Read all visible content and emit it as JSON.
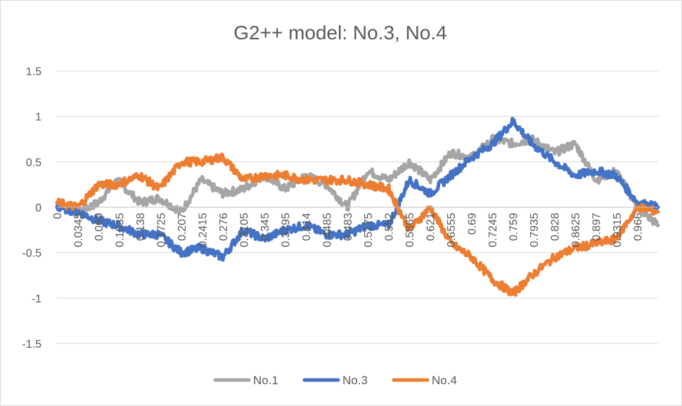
{
  "chart_data": {
    "type": "line",
    "title": "G2++ model: No.3, No.4",
    "xlabel": "",
    "ylabel": "",
    "ylim": [
      -1.5,
      1.5
    ],
    "xlim": [
      0,
      1
    ],
    "yticks": [
      1.5,
      1,
      0.5,
      0,
      -0.5,
      -1,
      -1.5
    ],
    "ytick_labels": [
      "1.5",
      "1",
      "0.5",
      "0",
      "-0.5",
      "-1",
      "-1.5"
    ],
    "xtick_labels": [
      "0",
      "0.0345",
      "0.069",
      "0.1035",
      "0.138",
      "0.1725",
      "0.207",
      "0.2415",
      "0.276",
      "0.3105",
      "0.345",
      "0.3795",
      "0.414",
      "0.4485",
      "0.483",
      "0.5175",
      "0.552",
      "0.5865",
      "0.621",
      "0.6555",
      "0.69",
      "0.7245",
      "0.759",
      "0.7935",
      "0.828",
      "0.8625",
      "0.897",
      "0.9315",
      "0.966"
    ],
    "grid": true,
    "legend_position": "bottom",
    "series": [
      {
        "name": "No.1",
        "color": "#a5a5a5",
        "x": [
          0,
          0.035,
          0.069,
          0.1,
          0.138,
          0.17,
          0.207,
          0.24,
          0.276,
          0.31,
          0.345,
          0.38,
          0.414,
          0.448,
          0.483,
          0.517,
          0.552,
          0.586,
          0.621,
          0.655,
          0.69,
          0.725,
          0.759,
          0.79,
          0.828,
          0.862,
          0.897,
          0.93,
          0.966,
          1.0
        ],
        "values": [
          0.05,
          -0.05,
          0.05,
          0.3,
          0.05,
          0.1,
          -0.05,
          0.3,
          0.15,
          0.2,
          0.35,
          0.2,
          0.35,
          0.25,
          0.0,
          0.4,
          0.3,
          0.5,
          0.3,
          0.6,
          0.55,
          0.75,
          0.7,
          0.75,
          0.6,
          0.7,
          0.3,
          0.4,
          0.0,
          -0.2
        ]
      },
      {
        "name": "No.3",
        "color": "#4472c4",
        "x": [
          0,
          0.035,
          0.069,
          0.1,
          0.138,
          0.17,
          0.207,
          0.24,
          0.276,
          0.31,
          0.345,
          0.38,
          0.414,
          0.448,
          0.483,
          0.517,
          0.552,
          0.586,
          0.621,
          0.655,
          0.69,
          0.725,
          0.759,
          0.79,
          0.828,
          0.862,
          0.897,
          0.93,
          0.966,
          1.0
        ],
        "values": [
          0.0,
          -0.05,
          -0.15,
          -0.2,
          -0.3,
          -0.3,
          -0.5,
          -0.45,
          -0.55,
          -0.25,
          -0.35,
          -0.25,
          -0.2,
          -0.3,
          -0.3,
          -0.2,
          -0.2,
          0.3,
          0.15,
          0.35,
          0.55,
          0.7,
          0.95,
          0.7,
          0.5,
          0.35,
          0.4,
          0.35,
          0.05,
          0.0
        ]
      },
      {
        "name": "No.4",
        "color": "#ed7d31",
        "x": [
          0,
          0.035,
          0.069,
          0.1,
          0.138,
          0.17,
          0.207,
          0.24,
          0.276,
          0.31,
          0.345,
          0.38,
          0.414,
          0.448,
          0.483,
          0.517,
          0.552,
          0.586,
          0.621,
          0.655,
          0.69,
          0.725,
          0.759,
          0.79,
          0.828,
          0.862,
          0.897,
          0.93,
          0.966,
          1.0
        ],
        "values": [
          0.05,
          0.0,
          0.25,
          0.25,
          0.35,
          0.2,
          0.5,
          0.5,
          0.55,
          0.3,
          0.35,
          0.35,
          0.3,
          0.3,
          0.3,
          0.25,
          0.2,
          -0.25,
          0.0,
          -0.4,
          -0.55,
          -0.8,
          -0.95,
          -0.75,
          -0.55,
          -0.45,
          -0.4,
          -0.35,
          0.0,
          -0.05
        ]
      }
    ]
  }
}
